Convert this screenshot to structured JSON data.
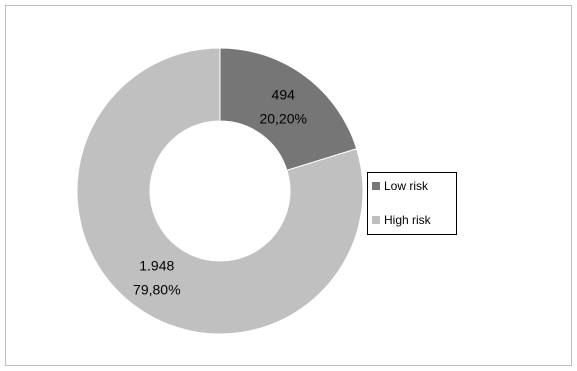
{
  "chart_data": {
    "type": "pie",
    "donut": true,
    "title": "",
    "legend_position": "right",
    "slices": [
      {
        "name": "Low risk",
        "value": 494,
        "value_label": "494",
        "percent": 20.2,
        "percent_label": "20,20%",
        "color": "#767676"
      },
      {
        "name": "High risk",
        "value": 1948,
        "value_label": "1.948",
        "percent": 79.8,
        "percent_label": "79,80%",
        "color": "#c0c0c0"
      }
    ]
  }
}
